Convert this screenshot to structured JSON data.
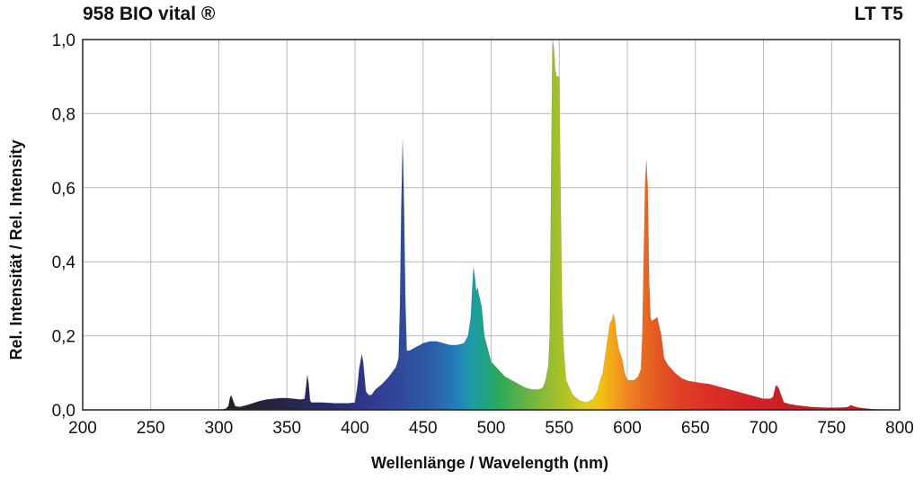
{
  "chart_data": {
    "type": "area",
    "title": "958  BIO vital ®",
    "title_right": "LT T5",
    "xlabel": "Wellenlänge / Wavelength (nm)",
    "ylabel": "Rel. Intensität / Rel. Intensity",
    "xlim": [
      200,
      800
    ],
    "ylim": [
      0,
      1
    ],
    "x_ticks": [
      200,
      250,
      300,
      350,
      400,
      450,
      500,
      550,
      600,
      650,
      700,
      750,
      800
    ],
    "x_tick_labels": [
      "200",
      "250",
      "300",
      "350",
      "400",
      "450",
      "500",
      "550",
      "600",
      "650",
      "700",
      "750",
      "800"
    ],
    "y_ticks": [
      0,
      0.2,
      0.4,
      0.6,
      0.8,
      1.0
    ],
    "y_tick_labels": [
      "0,0",
      "0,2",
      "0,4",
      "0,6",
      "0,8",
      "1,0"
    ],
    "grid": true,
    "fill": "wavelength-colored spectrum",
    "series": [
      {
        "x": [
          200,
          300,
          305,
          307,
          308,
          309,
          310,
          312,
          315,
          320,
          325,
          330,
          335,
          340,
          345,
          350,
          355,
          360,
          363,
          364,
          365,
          366,
          367,
          368,
          370,
          375,
          380,
          385,
          390,
          395,
          400,
          402,
          403,
          404,
          405,
          406,
          407,
          408,
          410,
          412,
          415,
          420,
          425,
          430,
          432,
          433,
          434,
          435,
          436,
          437,
          438,
          440,
          445,
          450,
          455,
          460,
          465,
          470,
          475,
          480,
          483,
          485,
          486,
          487,
          488,
          489,
          490,
          491,
          493,
          495,
          500,
          505,
          510,
          515,
          520,
          525,
          530,
          535,
          538,
          540,
          542,
          543,
          544,
          545,
          546,
          547,
          548,
          549,
          550,
          551,
          552,
          553,
          555,
          560,
          565,
          570,
          575,
          578,
          580,
          582,
          585,
          587,
          588,
          589,
          590,
          591,
          592,
          594,
          596,
          598,
          600,
          605,
          608,
          610,
          611,
          612,
          613,
          614,
          615,
          616,
          617,
          618,
          620,
          622,
          625,
          627,
          630,
          635,
          640,
          645,
          650,
          655,
          660,
          665,
          670,
          675,
          680,
          685,
          690,
          695,
          700,
          705,
          707,
          708,
          709,
          710,
          711,
          712,
          713,
          715,
          720,
          725,
          730,
          735,
          740,
          745,
          750,
          755,
          760,
          762,
          764,
          765,
          766,
          768,
          770,
          775,
          780,
          790,
          800
        ],
        "y": [
          0,
          0,
          0.003,
          0.01,
          0.03,
          0.04,
          0.03,
          0.01,
          0.008,
          0.012,
          0.018,
          0.024,
          0.028,
          0.03,
          0.032,
          0.032,
          0.03,
          0.028,
          0.03,
          0.06,
          0.095,
          0.07,
          0.025,
          0.02,
          0.02,
          0.02,
          0.019,
          0.018,
          0.018,
          0.018,
          0.02,
          0.07,
          0.11,
          0.13,
          0.15,
          0.13,
          0.09,
          0.05,
          0.04,
          0.04,
          0.055,
          0.07,
          0.09,
          0.115,
          0.14,
          0.28,
          0.55,
          0.73,
          0.55,
          0.3,
          0.16,
          0.16,
          0.17,
          0.18,
          0.185,
          0.185,
          0.18,
          0.175,
          0.175,
          0.18,
          0.2,
          0.25,
          0.32,
          0.385,
          0.36,
          0.32,
          0.33,
          0.31,
          0.28,
          0.2,
          0.13,
          0.11,
          0.09,
          0.08,
          0.07,
          0.06,
          0.055,
          0.055,
          0.06,
          0.08,
          0.12,
          0.2,
          0.6,
          1.0,
          0.98,
          0.92,
          0.9,
          0.9,
          0.9,
          0.6,
          0.3,
          0.18,
          0.08,
          0.04,
          0.025,
          0.02,
          0.03,
          0.05,
          0.08,
          0.1,
          0.18,
          0.23,
          0.24,
          0.245,
          0.26,
          0.24,
          0.2,
          0.16,
          0.14,
          0.1,
          0.08,
          0.08,
          0.09,
          0.11,
          0.2,
          0.4,
          0.6,
          0.675,
          0.6,
          0.35,
          0.25,
          0.24,
          0.245,
          0.25,
          0.2,
          0.14,
          0.12,
          0.1,
          0.085,
          0.078,
          0.075,
          0.072,
          0.07,
          0.065,
          0.06,
          0.055,
          0.05,
          0.045,
          0.04,
          0.035,
          0.03,
          0.03,
          0.035,
          0.05,
          0.065,
          0.065,
          0.06,
          0.05,
          0.04,
          0.02,
          0.015,
          0.012,
          0.01,
          0.008,
          0.007,
          0.006,
          0.006,
          0.006,
          0.007,
          0.008,
          0.012,
          0.012,
          0.01,
          0.008,
          0.006,
          0.004,
          0.002,
          0,
          0
        ]
      }
    ]
  }
}
